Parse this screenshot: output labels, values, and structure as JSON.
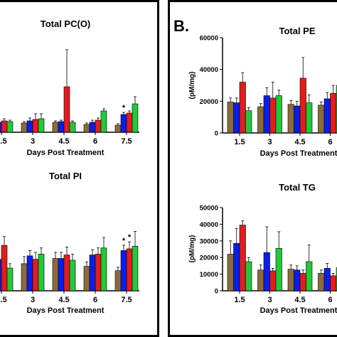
{
  "panel_letter": "B.",
  "colors": {
    "group1": "#8B6B3A",
    "group2": "#0A1EEA",
    "group3": "#E31C1C",
    "group4": "#22C83A"
  },
  "chart_data": [
    {
      "type": "bar",
      "title": "Total PC(O)",
      "xlabel": "Days Post Treatment",
      "ylabel": "",
      "categories": [
        "1.5",
        "3",
        "4.5",
        "6",
        "7.5"
      ],
      "ylim": [
        0,
        100
      ],
      "yticks": [],
      "series": [
        {
          "values": [
            12,
            13,
            14,
            11,
            10
          ],
          "errors": [
            2,
            2,
            2,
            2,
            2
          ]
        },
        {
          "values": [
            14,
            16,
            15,
            14,
            25
          ],
          "errors": [
            2,
            4,
            2,
            3,
            3
          ]
        },
        {
          "values": [
            16,
            18,
            64,
            17,
            27
          ],
          "errors": [
            3,
            8,
            52,
            3,
            3
          ]
        },
        {
          "values": [
            15,
            19,
            14,
            30,
            40
          ],
          "errors": [
            2,
            7,
            2,
            3,
            10
          ]
        }
      ],
      "annotations": [
        {
          "category": "7.5",
          "series_index": 1,
          "text": "*"
        }
      ]
    },
    {
      "type": "bar",
      "title": "Total PI",
      "xlabel": "Days Post Treatment",
      "ylabel": "",
      "categories": [
        "1.5",
        "3",
        "4.5",
        "6",
        "7.5"
      ],
      "ylim": [
        0,
        100
      ],
      "yticks": [],
      "series": [
        {
          "values": [
            40,
            31,
            37,
            28,
            23
          ],
          "errors": [
            5,
            8,
            7,
            5,
            4
          ]
        },
        {
          "values": [
            36,
            40,
            37,
            41,
            46
          ],
          "errors": [
            5,
            6,
            7,
            6,
            6
          ]
        },
        {
          "values": [
            52,
            36,
            41,
            42,
            48
          ],
          "errors": [
            10,
            8,
            9,
            7,
            8
          ]
        },
        {
          "values": [
            26,
            42,
            35,
            49,
            51
          ],
          "errors": [
            5,
            7,
            7,
            12,
            17
          ]
        }
      ],
      "annotations": [
        {
          "category": "7.5",
          "series_index": 1,
          "text": "*"
        },
        {
          "category": "7.5",
          "series_index": 2,
          "text": "*"
        }
      ]
    },
    {
      "type": "bar",
      "title": "Total PE",
      "xlabel": "Days Post Treatment",
      "ylabel": "(pM/mg)",
      "categories": [
        "1.5",
        "3",
        "4.5",
        "6"
      ],
      "ylim": [
        0,
        60000
      ],
      "yticks": [
        "0",
        "20000",
        "40000",
        "60000"
      ],
      "series": [
        {
          "values": [
            19500,
            16500,
            18000,
            17500
          ],
          "errors": [
            2500,
            2000,
            2500,
            2000
          ]
        },
        {
          "values": [
            19000,
            23500,
            17000,
            21500
          ],
          "errors": [
            3000,
            5000,
            3000,
            4000
          ]
        },
        {
          "values": [
            32000,
            22000,
            34500,
            25000
          ],
          "errors": [
            6000,
            10000,
            13000,
            5000
          ]
        },
        {
          "values": [
            14000,
            23500,
            19000,
            30000
          ],
          "errors": [
            2000,
            3500,
            5000,
            4000
          ]
        }
      ],
      "annotations": [
        {
          "category": "6",
          "series_index": 3,
          "text": "*"
        }
      ]
    },
    {
      "type": "bar",
      "title": "Total TG",
      "xlabel": "Days Post Treatment",
      "ylabel": "(pM/mg)",
      "categories": [
        "1.5",
        "3",
        "4.5",
        "6"
      ],
      "ylim": [
        0,
        50000
      ],
      "yticks": [
        "0",
        "10000",
        "20000",
        "30000",
        "40000",
        "50000"
      ],
      "series": [
        {
          "values": [
            22000,
            12500,
            13000,
            10500
          ],
          "errors": [
            8000,
            3000,
            2500,
            2000
          ]
        },
        {
          "values": [
            28500,
            23000,
            12500,
            13500
          ],
          "errors": [
            9000,
            15500,
            2500,
            3000
          ]
        },
        {
          "values": [
            39500,
            12000,
            10500,
            9000
          ],
          "errors": [
            2500,
            1500,
            2000,
            1500
          ]
        },
        {
          "values": [
            17500,
            25500,
            17500,
            14000
          ],
          "errors": [
            2500,
            10000,
            10000,
            3000
          ]
        }
      ],
      "annotations": []
    }
  ]
}
